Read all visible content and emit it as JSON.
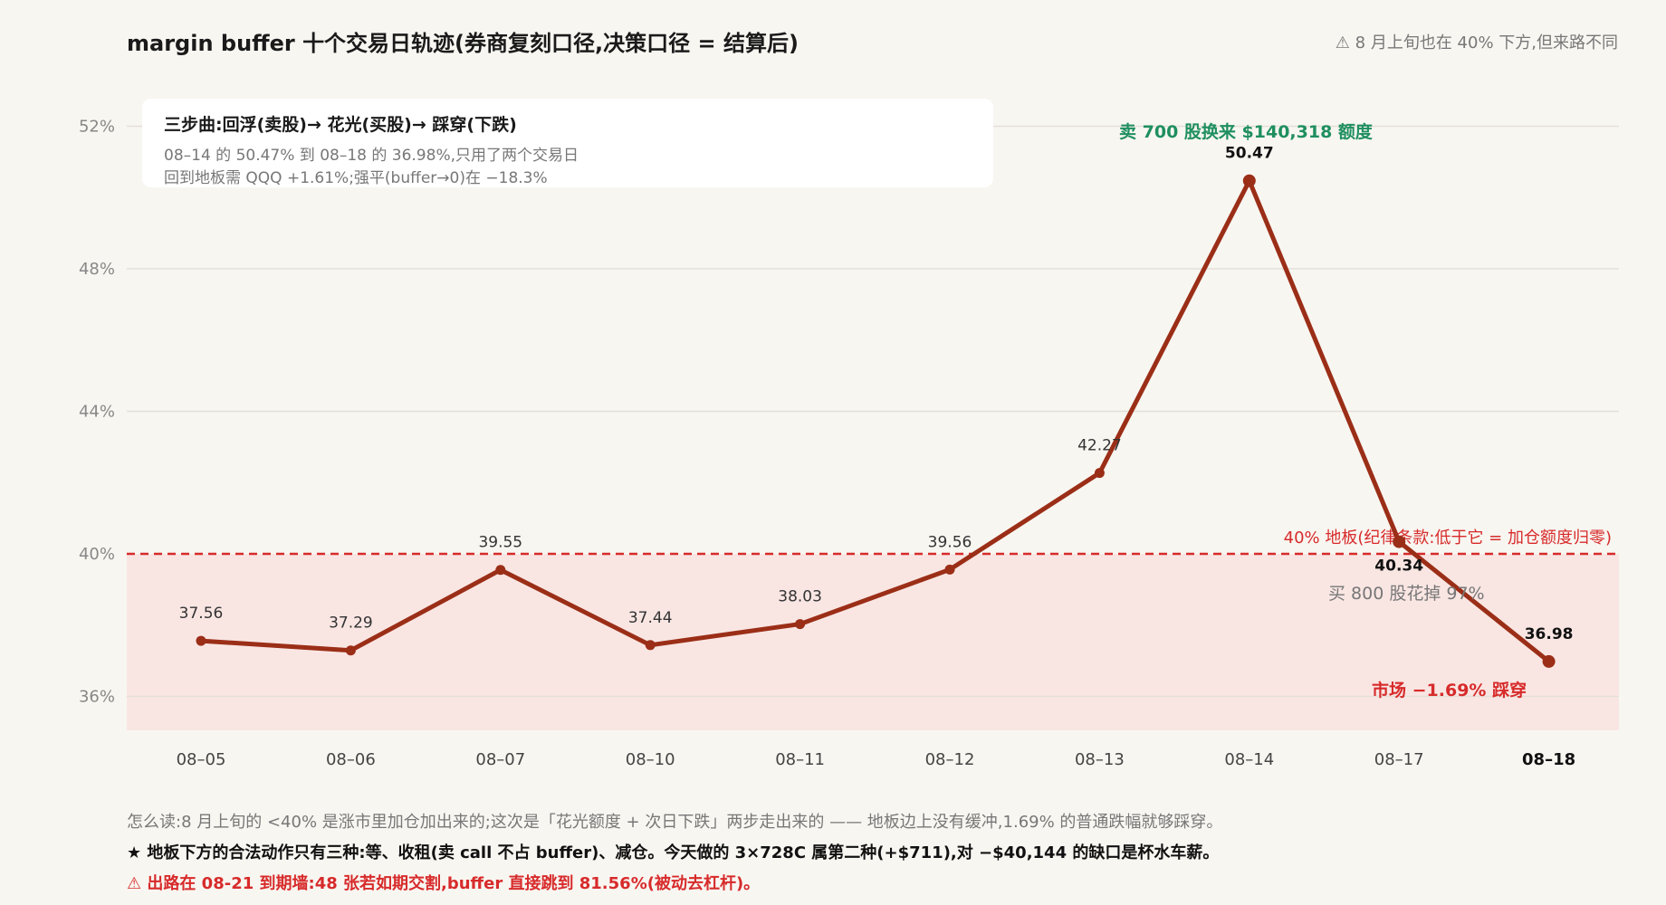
{
  "header": {
    "title": "margin buffer 十个交易日轨迹(券商复刻口径,决策口径 = 结算后)",
    "note": "⚠ 8 月上旬也在 40% 下方,但来路不同"
  },
  "legend_box": {
    "heading": "三步曲:回浮(卖股)→ 花光(买股)→ 踩穿(下跌)",
    "line1": "08–14 的 50.47% 到 08–18 的 36.98%,只用了两个交易日",
    "line2": "回到地板需 QQQ +1.61%;强平(buffer→0)在 −18.3%"
  },
  "colors": {
    "line": "#9b2e17",
    "floor": "#d72b2b",
    "floor_fill": "#f9e6e3",
    "grid": "#e3e0d8",
    "green_note": "#1f8f5f",
    "gray_text": "#777777"
  },
  "chart_data": {
    "type": "line",
    "categories": [
      "08–05",
      "08–06",
      "08–07",
      "08–10",
      "08–11",
      "08–12",
      "08–13",
      "08–14",
      "08–17",
      "08–18"
    ],
    "series": [
      {
        "values": [
          37.56,
          37.29,
          39.55,
          37.44,
          38.03,
          39.56,
          42.27,
          50.47,
          40.34,
          36.98
        ]
      }
    ],
    "data_labels": [
      "37.56",
      "37.29",
      "39.55",
      "37.44",
      "38.03",
      "39.56",
      "42.27",
      "50.47",
      "40.34",
      "36.98"
    ],
    "ylim": [
      35,
      53
    ],
    "yticks": [
      36,
      40,
      44,
      48,
      52
    ],
    "ytick_labels": [
      "36%",
      "40%",
      "44%",
      "48%",
      "52%"
    ],
    "grid": true,
    "floor": {
      "value": 40,
      "label": "40% 地板(纪律条款:低于它 = 加仓额度归零)"
    },
    "annotations": {
      "peak": "卖 700 股换来 $140,318 额度",
      "spend": "买 800 股花掉 97%",
      "break": "市场 −1.69% 踩穿"
    }
  },
  "footer": {
    "line1": "怎么读:8 月上旬的 <40% 是涨市里加仓加出来的;这次是「花光额度 + 次日下跌」两步走出来的 —— 地板边上没有缓冲,1.69% 的普通跌幅就够踩穿。",
    "line2": "★ 地板下方的合法动作只有三种:等、收租(卖 call 不占 buffer)、减仓。今天做的 3×728C 属第二种(+$711),对 −$40,144 的缺口是杯水车薪。",
    "line3": "⚠ 出路在 08-21 到期墙:48 张若如期交割,buffer 直接跳到 81.56%(被动去杠杆)。"
  }
}
